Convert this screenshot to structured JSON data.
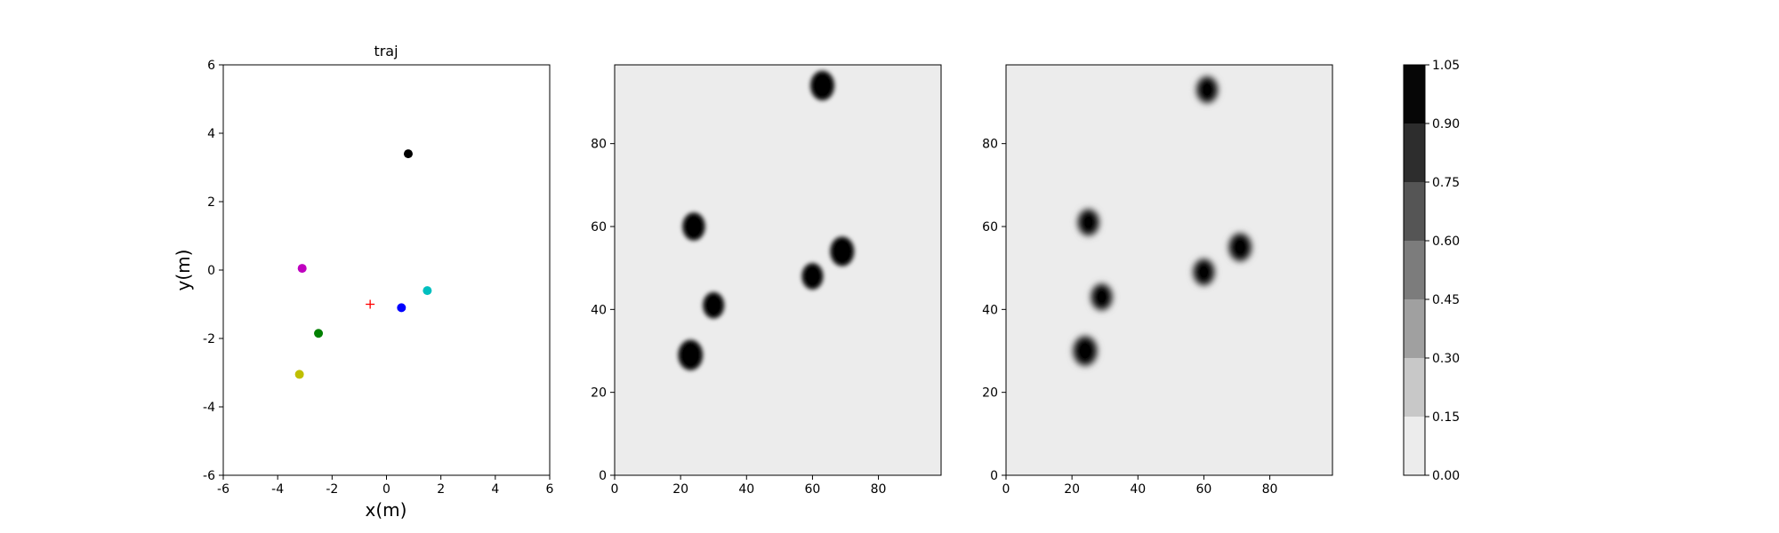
{
  "chart_data": [
    {
      "type": "scatter",
      "title": "traj",
      "xlabel": "x(m)",
      "ylabel": "y(m)",
      "xlim": [
        -6,
        6
      ],
      "ylim": [
        -6,
        6
      ],
      "xticks": [
        "-6",
        "-4",
        "-2",
        "0",
        "2",
        "4",
        "6"
      ],
      "yticks": [
        "-6",
        "-4",
        "-2",
        "0",
        "2",
        "4",
        "6"
      ],
      "grid": false,
      "points": [
        {
          "x": 0.8,
          "y": 3.4,
          "color": "#000000",
          "marker": "circle"
        },
        {
          "x": -3.1,
          "y": 0.05,
          "color": "#bf00bf",
          "marker": "circle"
        },
        {
          "x": 1.5,
          "y": -0.6,
          "color": "#00bfbf",
          "marker": "circle"
        },
        {
          "x": 0.55,
          "y": -1.1,
          "color": "#0000ff",
          "marker": "circle"
        },
        {
          "x": -2.5,
          "y": -1.85,
          "color": "#008000",
          "marker": "circle"
        },
        {
          "x": -3.2,
          "y": -3.05,
          "color": "#bfbf00",
          "marker": "circle"
        },
        {
          "x": -0.6,
          "y": -1.0,
          "color": "#ff0000",
          "marker": "plus"
        }
      ]
    },
    {
      "type": "heatmap",
      "xlim": [
        0,
        99
      ],
      "ylim": [
        0,
        99
      ],
      "xticks": [
        "0",
        "20",
        "40",
        "60",
        "80"
      ],
      "yticks": [
        "0",
        "20",
        "40",
        "60",
        "80"
      ],
      "background_level": 0.05,
      "blobs": [
        {
          "x": 63,
          "y": 94,
          "r": 3.2
        },
        {
          "x": 24,
          "y": 60,
          "r": 3.0
        },
        {
          "x": 69,
          "y": 54,
          "r": 3.2
        },
        {
          "x": 60,
          "y": 48,
          "r": 2.8
        },
        {
          "x": 30,
          "y": 41,
          "r": 2.8
        },
        {
          "x": 23,
          "y": 29,
          "r": 3.3
        }
      ]
    },
    {
      "type": "heatmap",
      "xlim": [
        0,
        99
      ],
      "ylim": [
        0,
        99
      ],
      "xticks": [
        "0",
        "20",
        "40",
        "60",
        "80"
      ],
      "yticks": [
        "0",
        "20",
        "40",
        "60",
        "80"
      ],
      "background_level": 0.05,
      "blobs": [
        {
          "x": 61,
          "y": 93,
          "r": 2.8
        },
        {
          "x": 25,
          "y": 61,
          "r": 2.8
        },
        {
          "x": 71,
          "y": 55,
          "r": 3.0
        },
        {
          "x": 60,
          "y": 49,
          "r": 2.8
        },
        {
          "x": 29,
          "y": 43,
          "r": 2.8
        },
        {
          "x": 24,
          "y": 30,
          "r": 3.2
        }
      ]
    }
  ],
  "colorbar": {
    "ticks": [
      "0.00",
      "0.15",
      "0.30",
      "0.45",
      "0.60",
      "0.75",
      "0.90",
      "1.05"
    ],
    "levels": [
      "#ececec",
      "#c8c8c8",
      "#a0a0a0",
      "#7c7c7c",
      "#555555",
      "#2d2d2d",
      "#060606"
    ]
  }
}
